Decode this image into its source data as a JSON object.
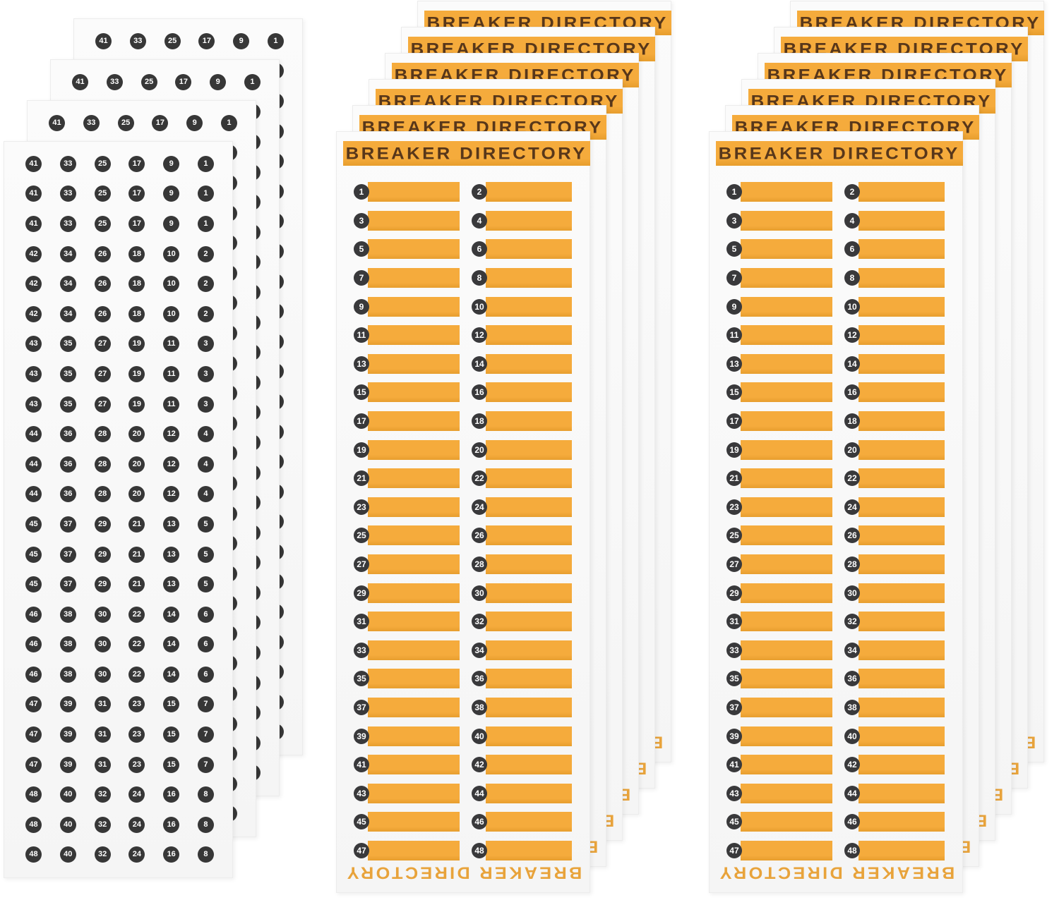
{
  "colors": {
    "orange": "#F5AB3C",
    "orange_dark": "#E79E2E",
    "brown": "#58371A",
    "footer_orange": "#E8A33B",
    "badge": "#39393B",
    "badge_text": "#FFFFFF",
    "dot": "#373737",
    "dot_text": "#FFFFFF",
    "sheet_bg": "#FBFBFB"
  },
  "number_sheet": {
    "rows": [
      [
        41,
        33,
        25,
        17,
        9,
        1
      ],
      [
        41,
        33,
        25,
        17,
        9,
        1
      ],
      [
        41,
        33,
        25,
        17,
        9,
        1
      ],
      [
        42,
        34,
        26,
        18,
        10,
        2
      ],
      [
        42,
        34,
        26,
        18,
        10,
        2
      ],
      [
        42,
        34,
        26,
        18,
        10,
        2
      ],
      [
        43,
        35,
        27,
        19,
        11,
        3
      ],
      [
        43,
        35,
        27,
        19,
        11,
        3
      ],
      [
        43,
        35,
        27,
        19,
        11,
        3
      ],
      [
        44,
        36,
        28,
        20,
        12,
        4
      ],
      [
        44,
        36,
        28,
        20,
        12,
        4
      ],
      [
        44,
        36,
        28,
        20,
        12,
        4
      ],
      [
        45,
        37,
        29,
        21,
        13,
        5
      ],
      [
        45,
        37,
        29,
        21,
        13,
        5
      ],
      [
        45,
        37,
        29,
        21,
        13,
        5
      ],
      [
        46,
        38,
        30,
        22,
        14,
        6
      ],
      [
        46,
        38,
        30,
        22,
        14,
        6
      ],
      [
        46,
        38,
        30,
        22,
        14,
        6
      ],
      [
        47,
        39,
        31,
        23,
        15,
        7
      ],
      [
        47,
        39,
        31,
        23,
        15,
        7
      ],
      [
        47,
        39,
        31,
        23,
        15,
        7
      ],
      [
        48,
        40,
        32,
        24,
        16,
        8
      ],
      [
        48,
        40,
        32,
        24,
        16,
        8
      ],
      [
        48,
        40,
        32,
        24,
        16,
        8
      ]
    ]
  },
  "directory_sheet": {
    "title": "BREAKER DIRECTORY",
    "footer_title": "BREAKER DIRECTORY",
    "rows": [
      [
        1,
        2
      ],
      [
        3,
        4
      ],
      [
        5,
        6
      ],
      [
        7,
        8
      ],
      [
        9,
        10
      ],
      [
        11,
        12
      ],
      [
        13,
        14
      ],
      [
        15,
        16
      ],
      [
        17,
        18
      ],
      [
        19,
        20
      ],
      [
        21,
        22
      ],
      [
        23,
        24
      ],
      [
        25,
        26
      ],
      [
        27,
        28
      ],
      [
        29,
        30
      ],
      [
        31,
        32
      ],
      [
        33,
        34
      ],
      [
        35,
        36
      ],
      [
        37,
        38
      ],
      [
        39,
        40
      ],
      [
        41,
        42
      ],
      [
        43,
        44
      ],
      [
        45,
        46
      ],
      [
        47,
        48
      ]
    ]
  },
  "stacks": [
    {
      "id": "left",
      "type": "number",
      "sheets": 4
    },
    {
      "id": "middle",
      "type": "directory",
      "sheets": 6
    },
    {
      "id": "right",
      "type": "directory",
      "sheets": 6
    }
  ]
}
